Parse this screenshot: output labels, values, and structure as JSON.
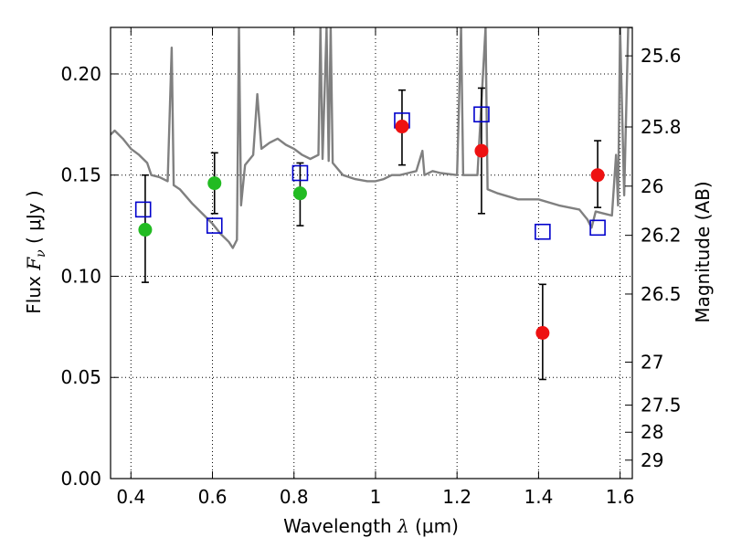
{
  "chart_data": {
    "type": "scatter",
    "title": "",
    "xlabel": {
      "prefix": "Wavelength  ",
      "symbol": "λ",
      "unit": " (μm)"
    },
    "ylabel": {
      "prefix": "Flux  ",
      "symbol": "F",
      "subscript": "ν",
      "unit": "  ( μJy )"
    },
    "ylabel_right": "Magnitude (AB)",
    "xlim": [
      0.35,
      1.63
    ],
    "ylim": [
      0.0,
      0.223
    ],
    "x_ticks": [
      0.4,
      0.6,
      0.8,
      1.0,
      1.2,
      1.4,
      1.6
    ],
    "x_tick_labels": [
      "0.4",
      "0.6",
      "0.8",
      "1",
      "1.2",
      "1.4",
      "1.6"
    ],
    "y_ticks": [
      0.0,
      0.05,
      0.1,
      0.15,
      0.2
    ],
    "y_tick_labels": [
      "0.00",
      "0.05",
      "0.10",
      "0.15",
      "0.20"
    ],
    "right_ticks": [
      {
        "mag": 25.6,
        "label": "25.6"
      },
      {
        "mag": 25.8,
        "label": "25.8"
      },
      {
        "mag": 26.0,
        "label": "26"
      },
      {
        "mag": 26.2,
        "label": "26.2"
      },
      {
        "mag": 26.5,
        "label": "26.5"
      },
      {
        "mag": 27.0,
        "label": "27"
      },
      {
        "mag": 27.5,
        "label": "27.5"
      },
      {
        "mag": 28.0,
        "label": "28"
      },
      {
        "mag": 29.0,
        "label": "29"
      }
    ],
    "grid": true,
    "colors": {
      "model_spectrum": "#808080",
      "model_photometry": "#0000cc",
      "optical_detections": "#22bb22",
      "nir_detections": "#ee1111",
      "errorbar": "#000000"
    },
    "series": [
      {
        "kind": "line",
        "points": [
          [
            0.35,
            0.17
          ],
          [
            0.36,
            0.172
          ],
          [
            0.38,
            0.168
          ],
          [
            0.4,
            0.163
          ],
          [
            0.42,
            0.16
          ],
          [
            0.44,
            0.156
          ],
          [
            0.45,
            0.15
          ],
          [
            0.47,
            0.149
          ],
          [
            0.49,
            0.147
          ],
          [
            0.5,
            0.213
          ],
          [
            0.505,
            0.145
          ],
          [
            0.52,
            0.143
          ],
          [
            0.55,
            0.136
          ],
          [
            0.58,
            0.13
          ],
          [
            0.6,
            0.126
          ],
          [
            0.62,
            0.121
          ],
          [
            0.64,
            0.117
          ],
          [
            0.65,
            0.114
          ],
          [
            0.66,
            0.118
          ],
          [
            0.665,
            0.225
          ],
          [
            0.67,
            0.135
          ],
          [
            0.68,
            0.155
          ],
          [
            0.7,
            0.16
          ],
          [
            0.71,
            0.19
          ],
          [
            0.72,
            0.163
          ],
          [
            0.74,
            0.166
          ],
          [
            0.76,
            0.168
          ],
          [
            0.78,
            0.165
          ],
          [
            0.8,
            0.163
          ],
          [
            0.82,
            0.16
          ],
          [
            0.84,
            0.158
          ],
          [
            0.86,
            0.16
          ],
          [
            0.865,
            0.225
          ],
          [
            0.87,
            0.158
          ],
          [
            0.88,
            0.225
          ],
          [
            0.885,
            0.157
          ],
          [
            0.89,
            0.225
          ],
          [
            0.895,
            0.156
          ],
          [
            0.92,
            0.15
          ],
          [
            0.95,
            0.148
          ],
          [
            0.98,
            0.147
          ],
          [
            1.0,
            0.147
          ],
          [
            1.02,
            0.148
          ],
          [
            1.04,
            0.15
          ],
          [
            1.06,
            0.15
          ],
          [
            1.08,
            0.151
          ],
          [
            1.1,
            0.152
          ],
          [
            1.115,
            0.162
          ],
          [
            1.12,
            0.15
          ],
          [
            1.14,
            0.152
          ],
          [
            1.16,
            0.151
          ],
          [
            1.2,
            0.15
          ],
          [
            1.21,
            0.225
          ],
          [
            1.215,
            0.15
          ],
          [
            1.25,
            0.15
          ],
          [
            1.27,
            0.225
          ],
          [
            1.275,
            0.143
          ],
          [
            1.3,
            0.141
          ],
          [
            1.35,
            0.138
          ],
          [
            1.4,
            0.138
          ],
          [
            1.45,
            0.135
          ],
          [
            1.5,
            0.133
          ],
          [
            1.52,
            0.128
          ],
          [
            1.53,
            0.124
          ],
          [
            1.54,
            0.132
          ],
          [
            1.56,
            0.131
          ],
          [
            1.58,
            0.13
          ],
          [
            1.59,
            0.16
          ],
          [
            1.595,
            0.135
          ],
          [
            1.6,
            0.225
          ],
          [
            1.61,
            0.14
          ],
          [
            1.62,
            0.225
          ],
          [
            1.63,
            0.225
          ]
        ]
      },
      {
        "kind": "open-square",
        "points": [
          [
            0.43,
            0.133
          ],
          [
            0.605,
            0.125
          ],
          [
            0.815,
            0.151
          ],
          [
            1.065,
            0.177
          ],
          [
            1.26,
            0.18
          ],
          [
            1.41,
            0.122
          ],
          [
            1.545,
            0.124
          ]
        ]
      },
      {
        "kind": "filled-circle",
        "points": [
          {
            "x": 0.435,
            "y": 0.123,
            "lo": 0.097,
            "hi": 0.15
          },
          {
            "x": 0.605,
            "y": 0.146,
            "lo": 0.131,
            "hi": 0.161
          },
          {
            "x": 0.815,
            "y": 0.141,
            "lo": 0.125,
            "hi": 0.156
          }
        ]
      },
      {
        "kind": "filled-circle",
        "points": [
          {
            "x": 1.065,
            "y": 0.174,
            "lo": 0.155,
            "hi": 0.192
          },
          {
            "x": 1.26,
            "y": 0.162,
            "lo": 0.131,
            "hi": 0.193
          },
          {
            "x": 1.41,
            "y": 0.072,
            "lo": 0.049,
            "hi": 0.096
          },
          {
            "x": 1.545,
            "y": 0.15,
            "lo": 0.134,
            "hi": 0.167
          }
        ]
      }
    ]
  }
}
